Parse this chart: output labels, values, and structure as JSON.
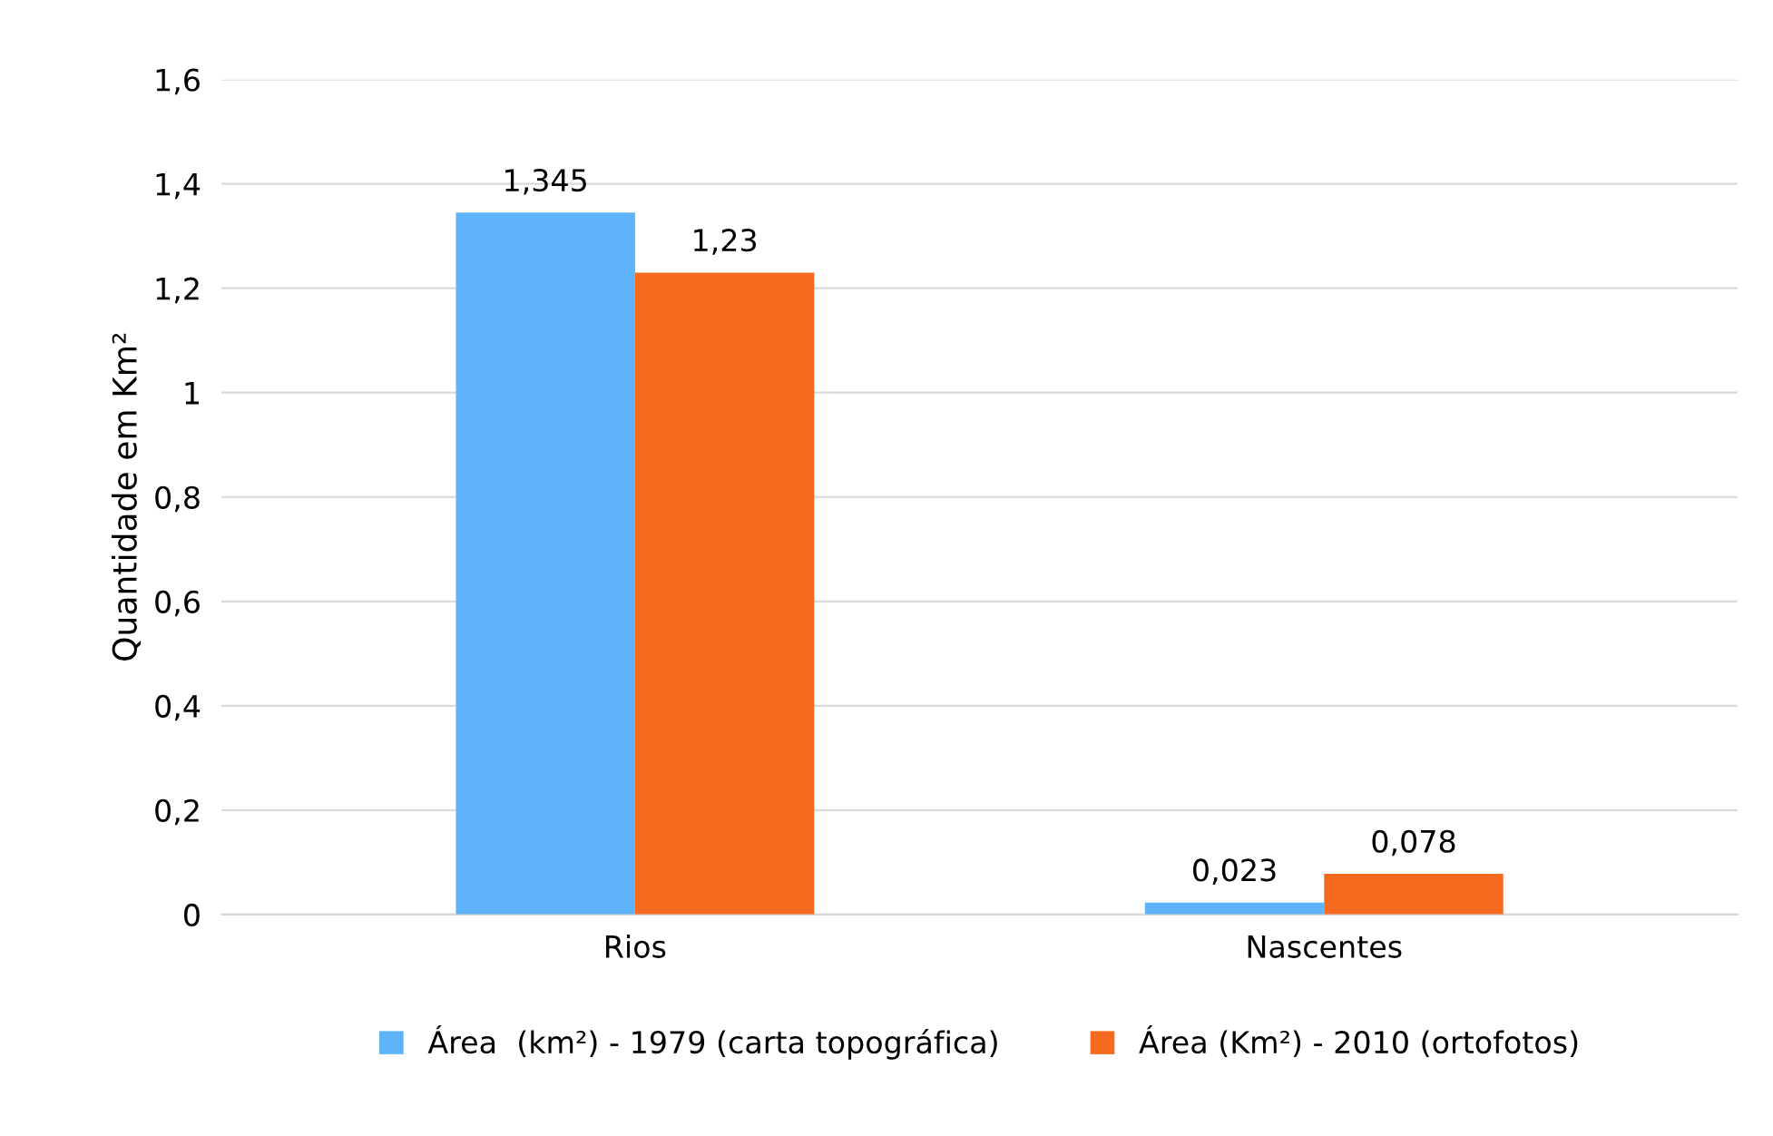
{
  "chart_data": {
    "type": "bar",
    "ylabel": "Quantidade em Km²",
    "categories": [
      "Rios",
      "Nascentes"
    ],
    "series": [
      {
        "name": "Área  (km²) - 1979 (carta topográfica)",
        "color": "#5fb3f8",
        "values": [
          1.345,
          0.023
        ],
        "value_labels": [
          "1,345",
          "0,023"
        ]
      },
      {
        "name": "Área (Km²) - 2010 (ortofotos)",
        "color": "#f46a1e",
        "values": [
          1.23,
          0.078
        ],
        "value_labels": [
          "1,23",
          "0,078"
        ]
      }
    ],
    "ylim": [
      0,
      1.6
    ],
    "yticks": [
      0,
      {
        "value": 0.2,
        "label": "0,2"
      },
      {
        "value": 0.4,
        "label": "0,4"
      },
      {
        "value": 0.6,
        "label": "0,6"
      },
      {
        "value": 0.8,
        "label": "0,8"
      },
      1,
      {
        "value": 1.2,
        "label": "1,2"
      },
      {
        "value": 1.4,
        "label": "1,4"
      },
      {
        "value": 1.6,
        "label": "1,6"
      }
    ],
    "grid": "y",
    "legend": "bottom"
  }
}
